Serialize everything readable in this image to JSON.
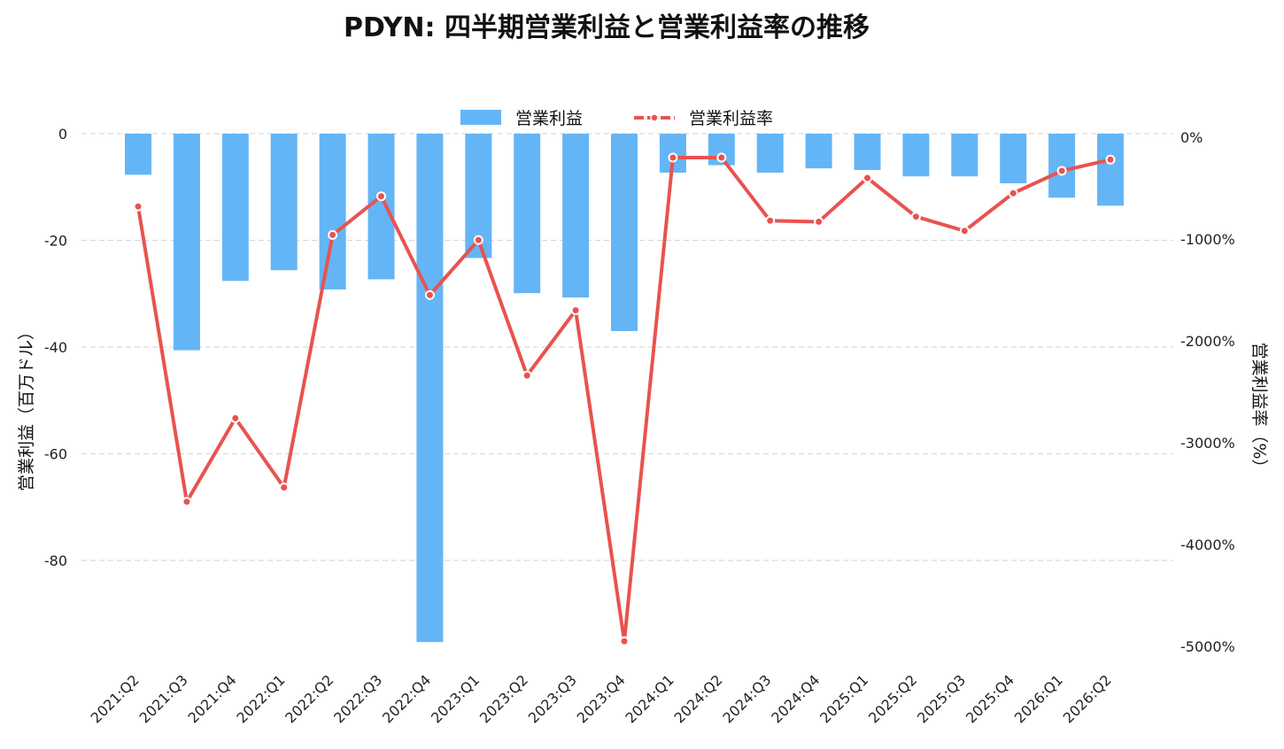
{
  "chart_data": {
    "type": "bar",
    "title": "PDYN: 四半期営業利益と営業利益率の推移",
    "categories": [
      "2021:Q2",
      "2021:Q3",
      "2021:Q4",
      "2022:Q1",
      "2022:Q2",
      "2022:Q3",
      "2022:Q4",
      "2023:Q1",
      "2023:Q2",
      "2023:Q3",
      "2023:Q4",
      "2024:Q1",
      "2024:Q2",
      "2024:Q3",
      "2024:Q4",
      "2025:Q1",
      "2025:Q2",
      "2025:Q3",
      "2025:Q4",
      "2026:Q1",
      "2026:Q2"
    ],
    "series": [
      {
        "name": "営業利益",
        "type": "bar",
        "axis": "left",
        "color": "#64b5f6",
        "values": [
          -7.7,
          -40.6,
          -27.6,
          -25.6,
          -29.2,
          -27.3,
          -95.3,
          -23.3,
          -29.9,
          -30.7,
          -37.0,
          -7.3,
          -5.9,
          -7.3,
          -6.5,
          -6.8,
          -8.0,
          -8.0,
          -9.3,
          -12.0,
          -13.5
        ]
      },
      {
        "name": "営業利益率",
        "type": "line",
        "axis": "right",
        "color": "#e8534f",
        "values": [
          -680,
          -3580,
          -2760,
          -3440,
          -960,
          -580,
          -1550,
          -1010,
          -2340,
          -1700,
          -4950,
          -200,
          -200,
          -820,
          -830,
          -400,
          -780,
          -920,
          -550,
          -330,
          -220
        ]
      }
    ],
    "y_left": {
      "label": "営業利益（百万ドル）",
      "lim": [
        -100,
        0
      ],
      "ticks": [
        0,
        -20,
        -40,
        -60,
        -80
      ],
      "tick_labels": [
        "0",
        "-20",
        "-40",
        "-60",
        "-80"
      ]
    },
    "y_right": {
      "label": "営業利益率（%）",
      "lim": [
        -5000,
        0
      ],
      "ticks": [
        0,
        -1000,
        -2000,
        -3000,
        -4000,
        -5000
      ],
      "tick_labels": [
        "0%",
        "-1000%",
        "-2000%",
        "-3000%",
        "-4000%",
        "-5000%"
      ]
    },
    "grid": true,
    "legend_position": "top-center"
  }
}
